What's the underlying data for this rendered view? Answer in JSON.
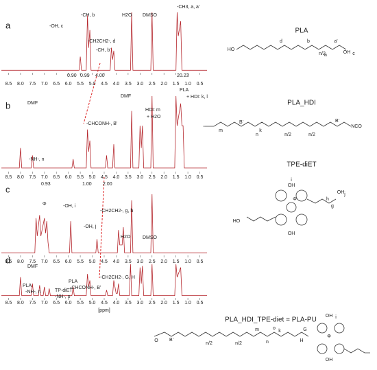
{
  "chart_data": [
    {
      "type": "line",
      "panel": "a",
      "x_label": null,
      "xlim": [
        8.8,
        0.2
      ],
      "ylim": [
        0,
        100
      ],
      "xticks": [
        8.5,
        {
          "value": 8,
          "label": "8.0"
        },
        7.5,
        {
          "value": 7,
          "label": "7.0"
        },
        6.5,
        {
          "value": 6,
          "label": "6.0"
        },
        5.5,
        {
          "value": 5,
          "label": "5.0"
        },
        4.5,
        {
          "value": 4,
          "label": "4.0"
        },
        3.5,
        {
          "value": 3,
          "label": "3.0"
        },
        2.5,
        {
          "value": 2,
          "label": "2.0"
        },
        1.5,
        {
          "value": 1,
          "label": "1.0"
        },
        0.5
      ],
      "x": [
        8.8,
        5.55,
        5.5,
        5.45,
        5.25,
        5.2,
        5.15,
        5.1,
        5.05,
        4.25,
        4.2,
        4.15,
        4.1,
        4.05,
        3.4,
        3.35,
        3.3,
        2.55,
        2.5,
        2.45,
        1.5,
        1.45,
        1.4,
        1.3,
        1.25,
        0.2
      ],
      "series": [
        {
          "color": "#b5272d",
          "values": [
            2,
            2,
            25,
            2,
            2,
            95,
            40,
            70,
            2,
            2,
            40,
            20,
            35,
            2,
            2,
            100,
            2,
            2,
            100,
            2,
            2,
            100,
            60,
            85,
            2,
            2
          ]
        }
      ],
      "annotations": [
        "-OH, c",
        "-CH, b",
        "-CH2CH2-, d",
        "-CH, b'",
        "H2O",
        "DMSO",
        "-CH3, a, a'",
        "0.90",
        "0.99",
        "4.00",
        "20.23"
      ]
    },
    {
      "type": "line",
      "panel": "b",
      "x_label": null,
      "xlim": [
        8.8,
        0.2
      ],
      "ylim": [
        0,
        100
      ],
      "xticks": [
        8.5,
        {
          "value": 8,
          "label": "8.0"
        },
        7.5,
        {
          "value": 7,
          "label": "7.0"
        },
        6.5,
        {
          "value": 6,
          "label": "6.0"
        },
        5.5,
        {
          "value": 5,
          "label": "5.0"
        },
        4.5,
        {
          "value": 4,
          "label": "4.0"
        },
        3.5,
        {
          "value": 3,
          "label": "3.0"
        },
        2.5,
        {
          "value": 2,
          "label": "2.0"
        },
        1.5,
        {
          "value": 1,
          "label": "1.0"
        },
        0.5
      ],
      "x": [
        8.8,
        8.05,
        8.0,
        7.95,
        7.55,
        7.5,
        7.45,
        5.85,
        5.8,
        5.75,
        5.25,
        5.2,
        5.15,
        5.1,
        5.05,
        4.45,
        4.4,
        4.35,
        4.15,
        4.1,
        4.05,
        3.4,
        3.35,
        3.3,
        3.05,
        3.0,
        2.95,
        2.9,
        2.85,
        2.55,
        2.5,
        2.45,
        1.55,
        1.5,
        1.45,
        1.3,
        1.25,
        1.2,
        1.15,
        0.2
      ],
      "series": [
        {
          "color": "#b5272d",
          "values": [
            3,
            3,
            30,
            3,
            3,
            20,
            3,
            3,
            15,
            3,
            3,
            55,
            25,
            40,
            3,
            3,
            20,
            3,
            3,
            35,
            3,
            3,
            80,
            3,
            3,
            60,
            30,
            60,
            3,
            3,
            100,
            3,
            3,
            100,
            60,
            90,
            60,
            60,
            3,
            3
          ]
        }
      ],
      "annotations": [
        "DMF",
        "-NH-, n",
        "-CHCONH-, B'",
        "HDI: m",
        "+ H2O",
        "DMF",
        "PLA",
        "+ HDI: k, l",
        "0.93",
        "1.00",
        "2.00"
      ]
    },
    {
      "type": "line",
      "panel": "c",
      "x_label": null,
      "xlim": [
        8.8,
        0.2
      ],
      "ylim": [
        0,
        100
      ],
      "xticks": [
        8.5,
        {
          "value": 8,
          "label": "8.0"
        },
        7.5,
        {
          "value": 7,
          "label": "7.0"
        },
        6.5,
        {
          "value": 6,
          "label": "6.0"
        },
        5.5,
        {
          "value": 5,
          "label": "5.0"
        },
        4.5,
        {
          "value": 4,
          "label": "4.0"
        },
        3.5,
        {
          "value": 3,
          "label": "3.0"
        },
        2.5,
        {
          "value": 2,
          "label": "2.0"
        },
        1.5,
        {
          "value": 1,
          "label": "1.0"
        },
        0.5
      ],
      "x": [
        8.8,
        7.4,
        7.35,
        7.3,
        7.2,
        7.15,
        7.0,
        6.95,
        6.9,
        6.85,
        6.8,
        5.95,
        5.9,
        5.85,
        4.85,
        4.8,
        4.75,
        3.95,
        3.9,
        3.85,
        3.75,
        3.7,
        3.65,
        3.4,
        3.35,
        3.3,
        2.55,
        2.5,
        2.45,
        0.2
      ],
      "series": [
        {
          "color": "#b5272d",
          "values": [
            2,
            2,
            60,
            30,
            65,
            30,
            60,
            35,
            55,
            20,
            2,
            2,
            55,
            2,
            2,
            25,
            2,
            2,
            40,
            15,
            15,
            45,
            2,
            2,
            90,
            2,
            2,
            100,
            2,
            2
          ]
        }
      ],
      "annotations": [
        "Φ",
        "-OH, i",
        "-OH, j",
        "-CH2CH2-, g, h",
        "H2O",
        "DMSO"
      ]
    },
    {
      "type": "line",
      "panel": "d",
      "x_label": "[ppm]",
      "xlim": [
        8.8,
        0.2
      ],
      "ylim": [
        0,
        100
      ],
      "xticks": [
        8.5,
        {
          "value": 8,
          "label": "8.0"
        },
        7.5,
        {
          "value": 7,
          "label": "7.0"
        },
        6.5,
        {
          "value": 6,
          "label": "6.0"
        },
        5.5,
        {
          "value": 5,
          "label": "5.0"
        },
        4.5,
        {
          "value": 4,
          "label": "4.0"
        },
        3.5,
        {
          "value": 3,
          "label": "3.0"
        },
        2.5,
        {
          "value": 2,
          "label": "2.0"
        },
        1.5,
        {
          "value": 1,
          "label": "1.0"
        },
        0.5
      ],
      "x": [
        8.8,
        8.05,
        8.0,
        7.95,
        7.55,
        7.5,
        7.45,
        7.25,
        7.2,
        7.15,
        7.05,
        7.0,
        6.95,
        6.85,
        6.8,
        6.75,
        5.85,
        5.8,
        5.75,
        5.25,
        5.2,
        5.15,
        5.1,
        5.05,
        4.45,
        4.4,
        4.35,
        4.15,
        4.1,
        4.0,
        3.95,
        3.9,
        3.85,
        3.45,
        3.4,
        3.35,
        3.05,
        3.0,
        2.95,
        2.9,
        2.85,
        2.55,
        2.5,
        2.45,
        1.55,
        1.5,
        1.45,
        1.3,
        1.25,
        0.2
      ],
      "series": [
        {
          "color": "#b5272d",
          "values": [
            3,
            3,
            60,
            3,
            3,
            40,
            3,
            3,
            35,
            3,
            3,
            30,
            3,
            3,
            25,
            3,
            3,
            30,
            3,
            3,
            70,
            30,
            50,
            3,
            3,
            20,
            3,
            3,
            50,
            10,
            10,
            40,
            3,
            3,
            100,
            3,
            3,
            90,
            40,
            95,
            3,
            3,
            100,
            3,
            3,
            100,
            60,
            90,
            3,
            3
          ]
        }
      ],
      "annotations": [
        "DMF",
        "PLA",
        "-NH-, n",
        "TP-diET",
        "-NH-, o",
        "PLA",
        "-CHCONH-, B'",
        "-CH2CH2-, G, H"
      ]
    }
  ],
  "structures": [
    {
      "name": "PLA",
      "labels": [
        "HO",
        "d",
        "b",
        "a'",
        "a",
        "n/2",
        "OH",
        "c"
      ]
    },
    {
      "name": "PLA_HDI",
      "labels": [
        "m",
        "k",
        "B'",
        "n",
        "n/2",
        "n/2",
        "B'",
        "NCO"
      ]
    },
    {
      "name": "TPE-diET",
      "labels": [
        "i",
        "OH",
        "Φ",
        "g",
        "h",
        "OH",
        "j",
        "HO",
        "OH"
      ]
    },
    {
      "name": "PLA_HDI_TPE-diet = PLA-PU",
      "labels": [
        "O",
        "B'",
        "n/2",
        "n/2",
        "n",
        "k",
        "m",
        "o",
        "G",
        "H",
        "Φ",
        "i",
        "OH",
        "OH"
      ]
    }
  ]
}
